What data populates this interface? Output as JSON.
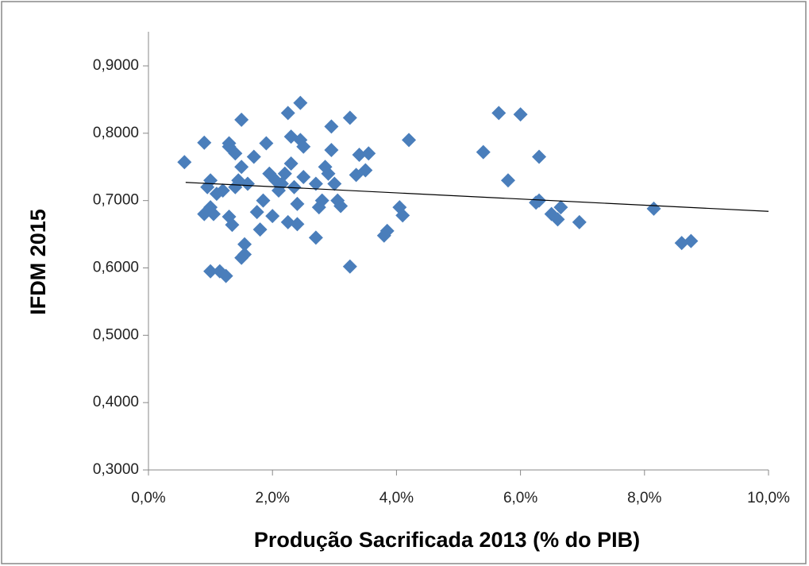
{
  "chart_data": {
    "type": "scatter",
    "x_label": "Produção Sacrificada 2013 (%  do PIB)",
    "y_label": "IFDM 2015",
    "color": "#4a7ebb",
    "x": [
      0.58,
      0.9,
      0.9,
      0.95,
      1.0,
      1.0,
      1.0,
      1.05,
      1.1,
      1.15,
      1.2,
      1.25,
      1.3,
      1.3,
      1.3,
      1.35,
      1.4,
      1.4,
      1.45,
      1.5,
      1.5,
      1.5,
      1.55,
      1.55,
      1.6,
      1.7,
      1.75,
      1.8,
      1.85,
      1.9,
      1.95,
      2.0,
      2.05,
      2.1,
      2.15,
      2.2,
      2.25,
      2.25,
      2.3,
      2.3,
      2.35,
      2.4,
      2.4,
      2.45,
      2.45,
      2.5,
      2.5,
      2.7,
      2.7,
      2.75,
      2.8,
      2.85,
      2.9,
      2.95,
      2.95,
      3.0,
      3.05,
      3.1,
      3.25,
      3.25,
      3.35,
      3.4,
      3.5,
      3.55,
      3.8,
      3.85,
      4.05,
      4.1,
      4.2,
      5.4,
      5.65,
      5.8,
      6.0,
      6.25,
      6.3,
      6.3,
      6.5,
      6.6,
      6.65,
      6.95,
      8.15,
      8.6,
      8.75
    ],
    "values": [
      0.757,
      0.786,
      0.68,
      0.72,
      0.73,
      0.595,
      0.69,
      0.68,
      0.71,
      0.595,
      0.715,
      0.588,
      0.785,
      0.78,
      0.676,
      0.664,
      0.77,
      0.72,
      0.73,
      0.82,
      0.75,
      0.615,
      0.62,
      0.635,
      0.725,
      0.765,
      0.683,
      0.657,
      0.7,
      0.785,
      0.74,
      0.677,
      0.73,
      0.715,
      0.725,
      0.74,
      0.83,
      0.668,
      0.795,
      0.755,
      0.72,
      0.665,
      0.695,
      0.79,
      0.845,
      0.78,
      0.735,
      0.645,
      0.725,
      0.69,
      0.7,
      0.75,
      0.74,
      0.775,
      0.81,
      0.725,
      0.7,
      0.692,
      0.823,
      0.602,
      0.738,
      0.768,
      0.745,
      0.77,
      0.648,
      0.655,
      0.69,
      0.678,
      0.79,
      0.772,
      0.83,
      0.73,
      0.828,
      0.697,
      0.765,
      0.7,
      0.68,
      0.672,
      0.69,
      0.668,
      0.688,
      0.637,
      0.64
    ],
    "trendline": {
      "x": [
        0.6,
        10
      ],
      "values": [
        0.727,
        0.684
      ],
      "color": "#000000"
    },
    "xlim": [
      0,
      10
    ],
    "xticks": [
      {
        "value": 0,
        "label": "0,0%"
      },
      {
        "value": 2,
        "label": "2,0%"
      },
      {
        "value": 4,
        "label": "4,0%"
      },
      {
        "value": 6,
        "label": "6,0%"
      },
      {
        "value": 8,
        "label": "8,0%"
      },
      {
        "value": 10,
        "label": "10,0%"
      }
    ],
    "ylim": [
      0.3,
      0.9
    ],
    "yticks": [
      {
        "value": 0.3,
        "label": "0,3000"
      },
      {
        "value": 0.4,
        "label": "0,4000"
      },
      {
        "value": 0.5,
        "label": "0,5000"
      },
      {
        "value": 0.6,
        "label": "0,6000"
      },
      {
        "value": 0.7,
        "label": "0,7000"
      },
      {
        "value": 0.8,
        "label": "0,8000"
      },
      {
        "value": 0.9,
        "label": "0,9000"
      }
    ],
    "grid": false
  }
}
